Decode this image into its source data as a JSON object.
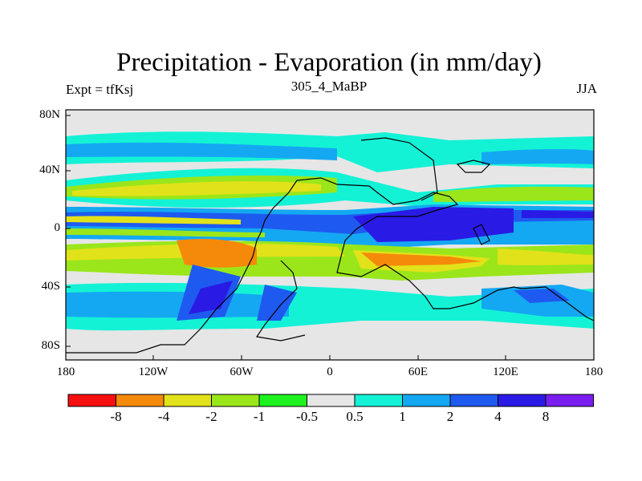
{
  "header": {
    "title": "Precipitation - Evaporation (in mm/day)",
    "center": "305_4_MaBP",
    "left": "Expt = tfKsj",
    "right": "JJA"
  },
  "axes": {
    "lat_labels": [
      "80N",
      "40N",
      "0",
      "40S",
      "80S"
    ],
    "lon_labels": [
      "180",
      "120W",
      "60W",
      "0",
      "60E",
      "120E",
      "180"
    ]
  },
  "colorbar": {
    "colors": [
      "#f50f0f",
      "#f58a0a",
      "#e2e21a",
      "#9ae61a",
      "#1ef21e",
      "#e6e6e6",
      "#14f2d6",
      "#14a8f2",
      "#1e5af0",
      "#2a1ae6",
      "#7a1ef0"
    ],
    "labels": [
      "-8",
      "-4",
      "-2",
      "-1",
      "-0.5",
      "0.5",
      "1",
      "2",
      "4",
      "8"
    ]
  }
}
